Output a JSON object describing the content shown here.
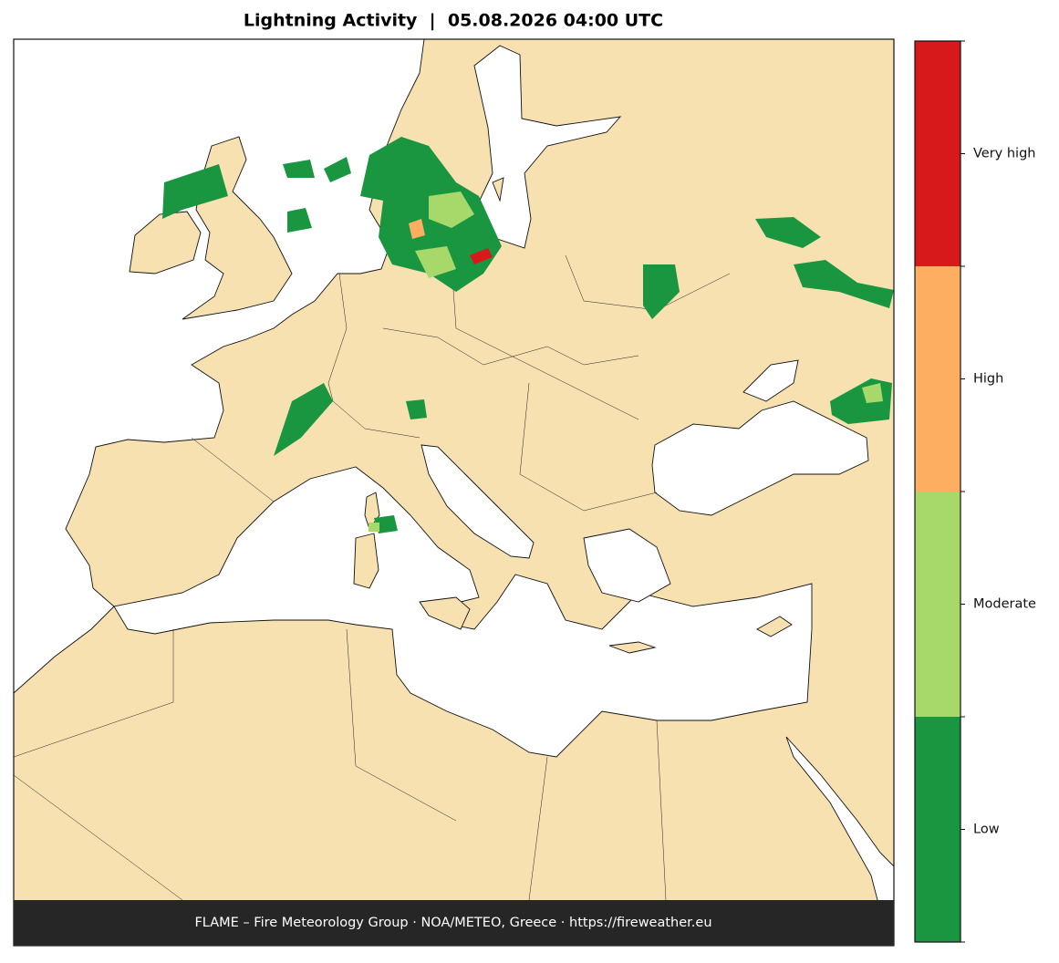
{
  "title": "Lightning Activity  |  05.08.2026 04:00 UTC",
  "footer": "FLAME – Fire Meteorology Group · NOA/METEO, Greece · https://fireweather.eu",
  "legend": [
    {
      "name": "Low",
      "color": "#1a9641"
    },
    {
      "name": "Moderate",
      "color": "#a6d96a"
    },
    {
      "name": "High",
      "color": "#fdae61"
    },
    {
      "name": "Very high",
      "color": "#d7191c"
    }
  ]
}
